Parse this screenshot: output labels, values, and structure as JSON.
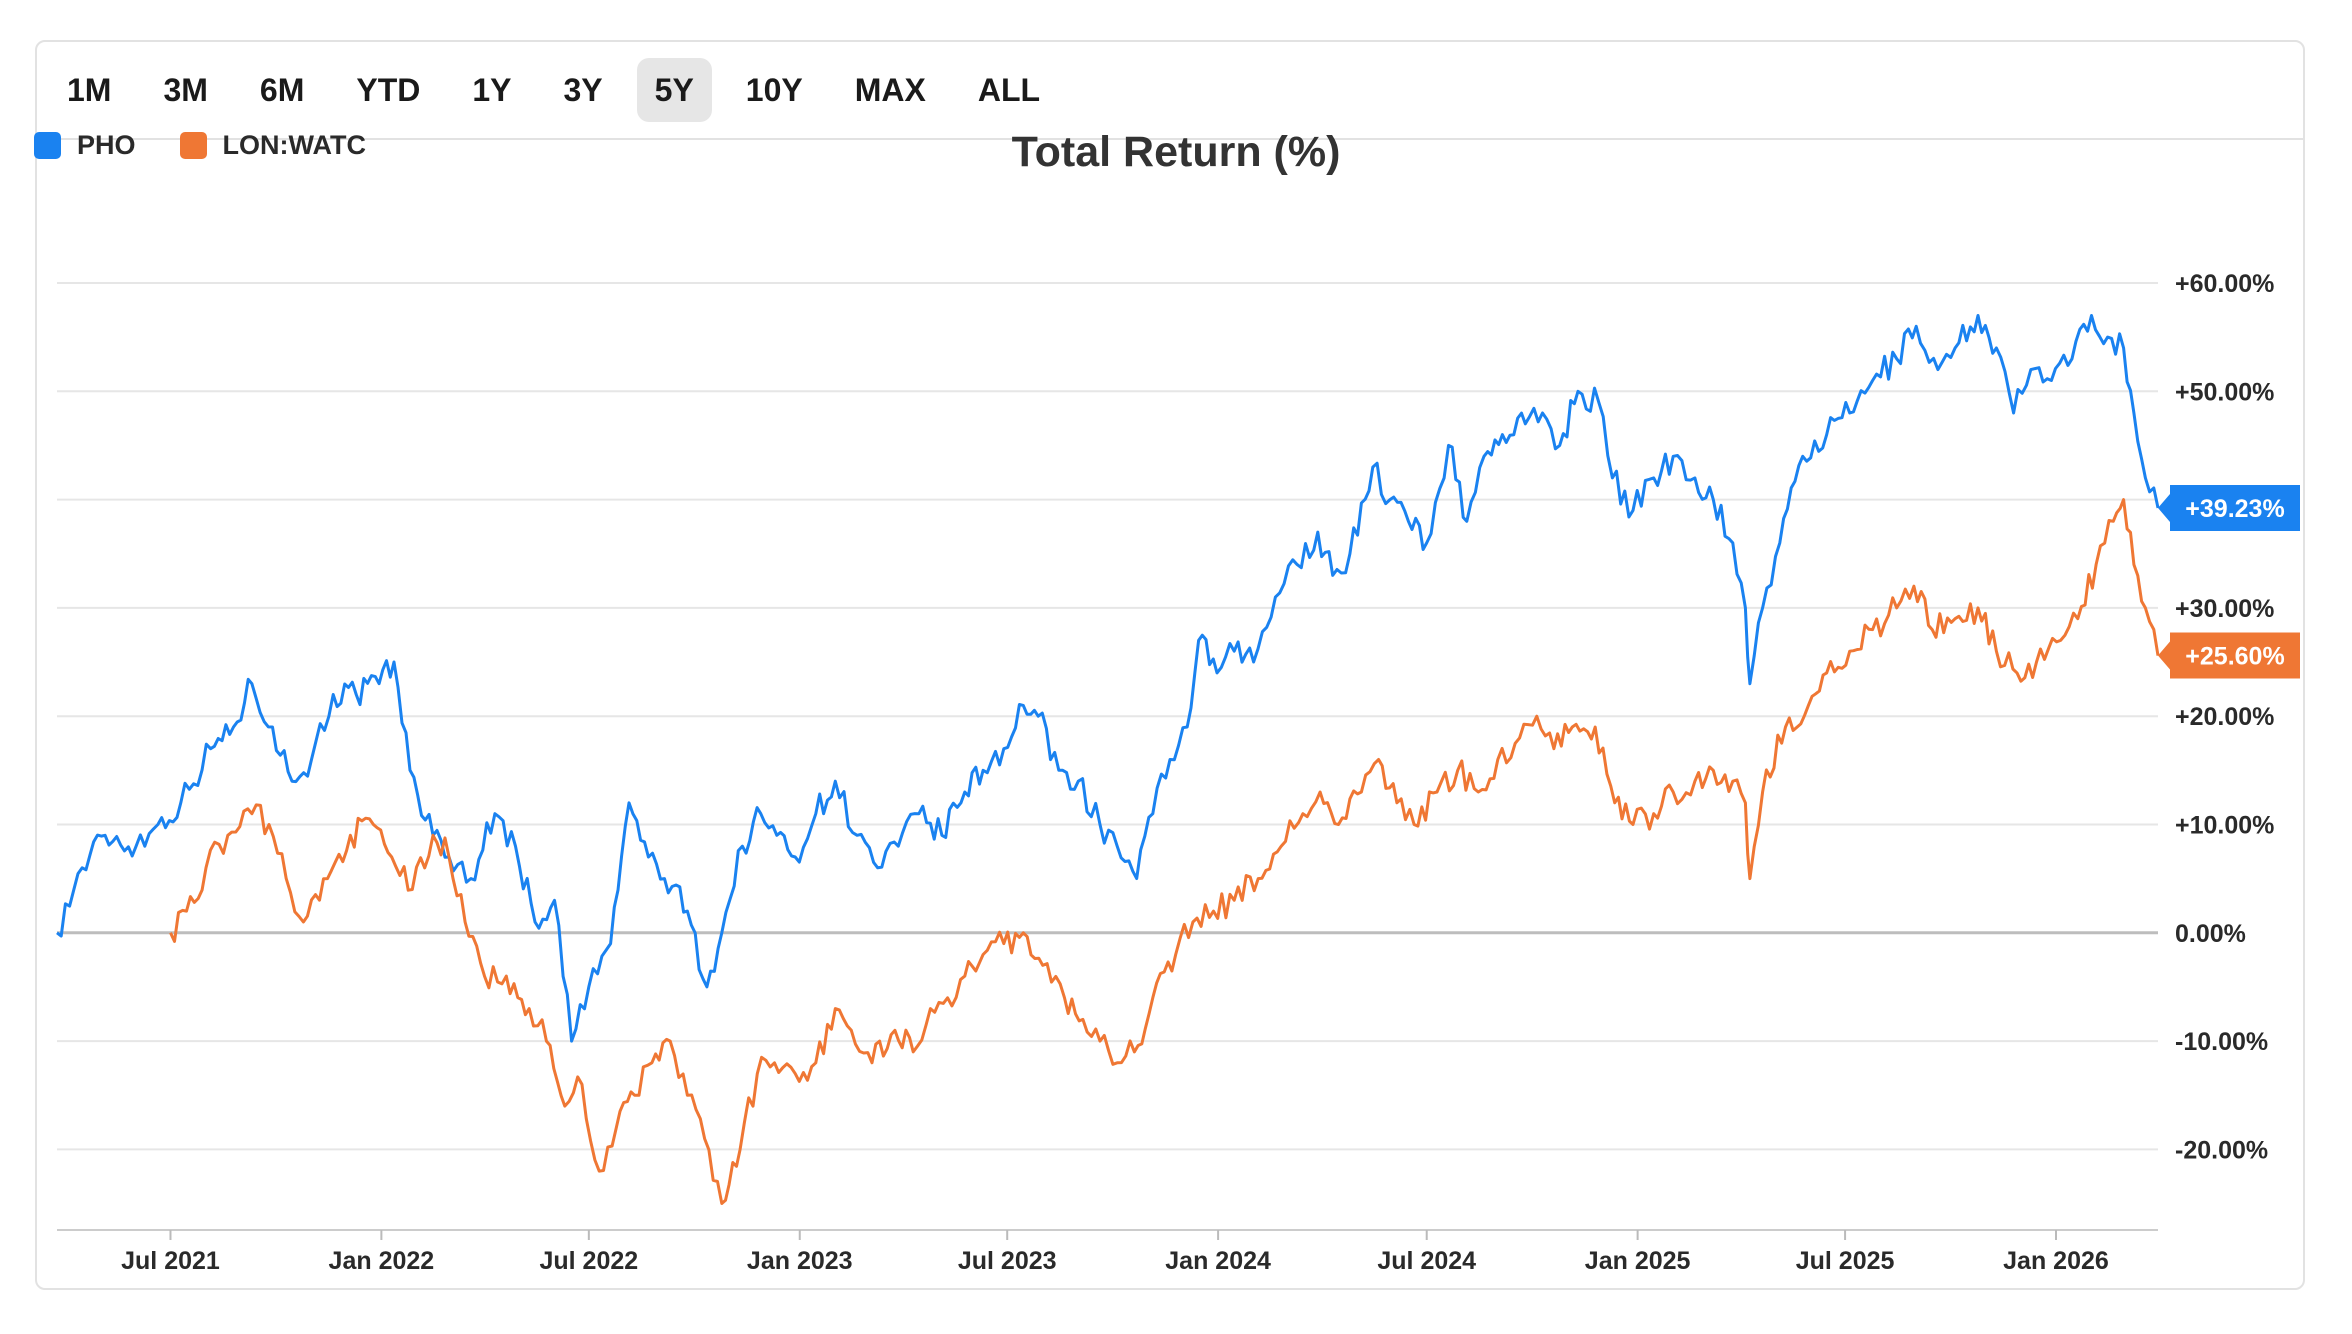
{
  "toolbar": {
    "ranges": [
      "1M",
      "3M",
      "6M",
      "YTD",
      "1Y",
      "3Y",
      "5Y",
      "10Y",
      "MAX",
      "ALL"
    ],
    "active": "5Y"
  },
  "colors": {
    "PHO": "#1a82f0",
    "LON:WATC": "#ef7734",
    "grid": "#e6e6e6",
    "zero": "#bdbdbd"
  },
  "chart_data": {
    "type": "line",
    "title": "Total Return (%)",
    "xlabel": "",
    "ylabel": "",
    "ylim": [
      -27,
      63
    ],
    "xlim": [
      "2021-03-24",
      "2026-03-31"
    ],
    "y_ticks": [
      60,
      50,
      40,
      30,
      20,
      10,
      0,
      -10,
      -20
    ],
    "y_tick_labels": [
      "+60.00%",
      "+50.00%",
      "",
      "+30.00%",
      "+20.00%",
      "+10.00%",
      "0.00%",
      "-10.00%",
      "-20.00%"
    ],
    "x_ticks": [
      "2021-07-01",
      "2022-01-01",
      "2022-07-01",
      "2023-01-01",
      "2023-07-01",
      "2024-01-01",
      "2024-07-01",
      "2025-01-01",
      "2025-07-01",
      "2026-01-01"
    ],
    "x_tick_labels": [
      "Jul 2021",
      "Jan 2022",
      "Jul 2022",
      "Jan 2023",
      "Jul 2023",
      "Jan 2024",
      "Jul 2024",
      "Jan 2025",
      "Jul 2025",
      "Jan 2026"
    ],
    "grid": true,
    "legend": "top-left",
    "series": [
      {
        "name": "PHO",
        "color": "#1a82f0",
        "end_label": "+39.23%",
        "points": [
          [
            "2021-03-24",
            0
          ],
          [
            "2021-04-15",
            6
          ],
          [
            "2021-05-05",
            9
          ],
          [
            "2021-06-01",
            8
          ],
          [
            "2021-06-20",
            10
          ],
          [
            "2021-07-10",
            12
          ],
          [
            "2021-08-05",
            17
          ],
          [
            "2021-08-25",
            19
          ],
          [
            "2021-09-10",
            23
          ],
          [
            "2021-09-28",
            19
          ],
          [
            "2021-10-15",
            14
          ],
          [
            "2021-11-01",
            16
          ],
          [
            "2021-11-20",
            22
          ],
          [
            "2021-12-10",
            22
          ],
          [
            "2021-12-30",
            23
          ],
          [
            "2022-01-12",
            25
          ],
          [
            "2022-01-26",
            15
          ],
          [
            "2022-02-15",
            9
          ],
          [
            "2022-03-01",
            7
          ],
          [
            "2022-03-20",
            5
          ],
          [
            "2022-04-10",
            11
          ],
          [
            "2022-04-28",
            8
          ],
          [
            "2022-05-15",
            1
          ],
          [
            "2022-06-01",
            3
          ],
          [
            "2022-06-16",
            -10
          ],
          [
            "2022-07-01",
            -5
          ],
          [
            "2022-07-20",
            -1
          ],
          [
            "2022-08-05",
            12
          ],
          [
            "2022-08-22",
            7
          ],
          [
            "2022-09-05",
            5
          ],
          [
            "2022-09-25",
            2
          ],
          [
            "2022-10-12",
            -5
          ],
          [
            "2022-10-25",
            0
          ],
          [
            "2022-11-12",
            8
          ],
          [
            "2022-11-28",
            11
          ],
          [
            "2022-12-12",
            9
          ],
          [
            "2022-12-28",
            7
          ],
          [
            "2023-01-15",
            11
          ],
          [
            "2023-02-01",
            14
          ],
          [
            "2023-02-20",
            9
          ],
          [
            "2023-03-10",
            6
          ],
          [
            "2023-03-28",
            8
          ],
          [
            "2023-04-15",
            11
          ],
          [
            "2023-05-05",
            9
          ],
          [
            "2023-05-25",
            13
          ],
          [
            "2023-06-10",
            15
          ],
          [
            "2023-06-28",
            17
          ],
          [
            "2023-07-15",
            21
          ],
          [
            "2023-07-28",
            20
          ],
          [
            "2023-08-15",
            15
          ],
          [
            "2023-09-01",
            14
          ],
          [
            "2023-09-20",
            10
          ],
          [
            "2023-10-05",
            8
          ],
          [
            "2023-10-22",
            5
          ],
          [
            "2023-11-05",
            11
          ],
          [
            "2023-11-20",
            16
          ],
          [
            "2023-12-05",
            19
          ],
          [
            "2023-12-15",
            27
          ],
          [
            "2023-12-31",
            24
          ],
          [
            "2024-01-15",
            26
          ],
          [
            "2024-02-01",
            25
          ],
          [
            "2024-02-20",
            31
          ],
          [
            "2024-03-10",
            34
          ],
          [
            "2024-03-28",
            37
          ],
          [
            "2024-04-10",
            33
          ],
          [
            "2024-04-25",
            35
          ],
          [
            "2024-05-15",
            43
          ],
          [
            "2024-05-30",
            40
          ],
          [
            "2024-06-15",
            38
          ],
          [
            "2024-07-01",
            36
          ],
          [
            "2024-07-20",
            45
          ],
          [
            "2024-08-05",
            38
          ],
          [
            "2024-08-20",
            44
          ],
          [
            "2024-09-05",
            46
          ],
          [
            "2024-09-25",
            47
          ],
          [
            "2024-10-10",
            48
          ],
          [
            "2024-10-25",
            45
          ],
          [
            "2024-11-10",
            50
          ],
          [
            "2024-11-28",
            49
          ],
          [
            "2024-12-10",
            42
          ],
          [
            "2024-12-28",
            39
          ],
          [
            "2025-01-15",
            42
          ],
          [
            "2025-02-01",
            44
          ],
          [
            "2025-02-20",
            42
          ],
          [
            "2025-03-08",
            40
          ],
          [
            "2025-03-25",
            36
          ],
          [
            "2025-04-05",
            30
          ],
          [
            "2025-04-09",
            23
          ],
          [
            "2025-04-20",
            30
          ],
          [
            "2025-05-05",
            36
          ],
          [
            "2025-05-25",
            44
          ],
          [
            "2025-06-15",
            46
          ],
          [
            "2025-07-05",
            48
          ],
          [
            "2025-07-25",
            51
          ],
          [
            "2025-08-15",
            53
          ],
          [
            "2025-09-01",
            56
          ],
          [
            "2025-09-20",
            52
          ],
          [
            "2025-10-05",
            54
          ],
          [
            "2025-10-25",
            57
          ],
          [
            "2025-11-10",
            54
          ],
          [
            "2025-11-25",
            48
          ],
          [
            "2025-12-10",
            52
          ],
          [
            "2025-12-28",
            51
          ],
          [
            "2026-01-15",
            53
          ],
          [
            "2026-02-01",
            57
          ],
          [
            "2026-02-15",
            55
          ],
          [
            "2026-03-01",
            54
          ],
          [
            "2026-03-10",
            48
          ],
          [
            "2026-03-20",
            42
          ],
          [
            "2026-03-31",
            39.23
          ]
        ]
      },
      {
        "name": "LON:WATC",
        "color": "#ef7734",
        "end_label": "+25.60%",
        "points": [
          [
            "2021-07-01",
            0
          ],
          [
            "2021-07-15",
            2
          ],
          [
            "2021-08-01",
            6
          ],
          [
            "2021-08-20",
            9
          ],
          [
            "2021-09-10",
            11
          ],
          [
            "2021-09-25",
            10
          ],
          [
            "2021-10-10",
            5
          ],
          [
            "2021-10-25",
            1
          ],
          [
            "2021-11-15",
            5
          ],
          [
            "2021-12-05",
            9
          ],
          [
            "2021-12-25",
            10
          ],
          [
            "2022-01-10",
            7
          ],
          [
            "2022-01-28",
            4
          ],
          [
            "2022-02-15",
            9
          ],
          [
            "2022-03-01",
            7
          ],
          [
            "2022-03-15",
            1
          ],
          [
            "2022-04-01",
            -4
          ],
          [
            "2022-04-20",
            -4
          ],
          [
            "2022-05-10",
            -7
          ],
          [
            "2022-05-25",
            -10
          ],
          [
            "2022-06-10",
            -16
          ],
          [
            "2022-06-25",
            -14
          ],
          [
            "2022-07-10",
            -22
          ],
          [
            "2022-07-25",
            -18
          ],
          [
            "2022-08-10",
            -15
          ],
          [
            "2022-08-25",
            -12
          ],
          [
            "2022-09-10",
            -10
          ],
          [
            "2022-09-25",
            -15
          ],
          [
            "2022-10-10",
            -19
          ],
          [
            "2022-10-25",
            -25
          ],
          [
            "2022-11-10",
            -20
          ],
          [
            "2022-11-25",
            -13
          ],
          [
            "2022-12-10",
            -12
          ],
          [
            "2022-12-28",
            -13
          ],
          [
            "2023-01-15",
            -12
          ],
          [
            "2023-02-01",
            -7
          ],
          [
            "2023-02-15",
            -9
          ],
          [
            "2023-03-05",
            -12
          ],
          [
            "2023-03-25",
            -9
          ],
          [
            "2023-04-10",
            -11
          ],
          [
            "2023-04-25",
            -7
          ],
          [
            "2023-05-10",
            -6
          ],
          [
            "2023-05-25",
            -4
          ],
          [
            "2023-06-10",
            -2
          ],
          [
            "2023-06-28",
            -1
          ],
          [
            "2023-07-15",
            0
          ],
          [
            "2023-08-01",
            -3
          ],
          [
            "2023-08-20",
            -6
          ],
          [
            "2023-09-05",
            -8
          ],
          [
            "2023-09-20",
            -10
          ],
          [
            "2023-10-05",
            -12
          ],
          [
            "2023-10-20",
            -11
          ],
          [
            "2023-11-05",
            -6
          ],
          [
            "2023-11-25",
            -2
          ],
          [
            "2023-12-10",
            1
          ],
          [
            "2023-12-28",
            2
          ],
          [
            "2024-01-15",
            3
          ],
          [
            "2024-02-05",
            5
          ],
          [
            "2024-02-25",
            8
          ],
          [
            "2024-03-15",
            11
          ],
          [
            "2024-03-30",
            13
          ],
          [
            "2024-04-15",
            10
          ],
          [
            "2024-05-05",
            13
          ],
          [
            "2024-05-20",
            16
          ],
          [
            "2024-06-05",
            12
          ],
          [
            "2024-06-20",
            10
          ],
          [
            "2024-07-10",
            13
          ],
          [
            "2024-07-28",
            15
          ],
          [
            "2024-08-15",
            13
          ],
          [
            "2024-09-01",
            16
          ],
          [
            "2024-09-20",
            18
          ],
          [
            "2024-10-05",
            20
          ],
          [
            "2024-10-20",
            17
          ],
          [
            "2024-11-05",
            19
          ],
          [
            "2024-11-25",
            19
          ],
          [
            "2024-12-12",
            12
          ],
          [
            "2024-12-28",
            10
          ],
          [
            "2025-01-15",
            11
          ],
          [
            "2025-02-01",
            13
          ],
          [
            "2025-02-20",
            14
          ],
          [
            "2025-03-08",
            15
          ],
          [
            "2025-03-25",
            14
          ],
          [
            "2025-04-05",
            12
          ],
          [
            "2025-04-09",
            5
          ],
          [
            "2025-04-20",
            13
          ],
          [
            "2025-05-10",
            19
          ],
          [
            "2025-05-30",
            21
          ],
          [
            "2025-06-15",
            24
          ],
          [
            "2025-07-05",
            26
          ],
          [
            "2025-07-25",
            28
          ],
          [
            "2025-08-15",
            30
          ],
          [
            "2025-08-30",
            32
          ],
          [
            "2025-09-15",
            28
          ],
          [
            "2025-10-05",
            29
          ],
          [
            "2025-10-25",
            30
          ],
          [
            "2025-11-10",
            26
          ],
          [
            "2025-11-28",
            24
          ],
          [
            "2025-12-15",
            25
          ],
          [
            "2026-01-05",
            27
          ],
          [
            "2026-01-20",
            29
          ],
          [
            "2026-02-05",
            34
          ],
          [
            "2026-02-20",
            38
          ],
          [
            "2026-03-01",
            40
          ],
          [
            "2026-03-10",
            34
          ],
          [
            "2026-03-20",
            30
          ],
          [
            "2026-03-31",
            25.6
          ]
        ]
      }
    ]
  }
}
